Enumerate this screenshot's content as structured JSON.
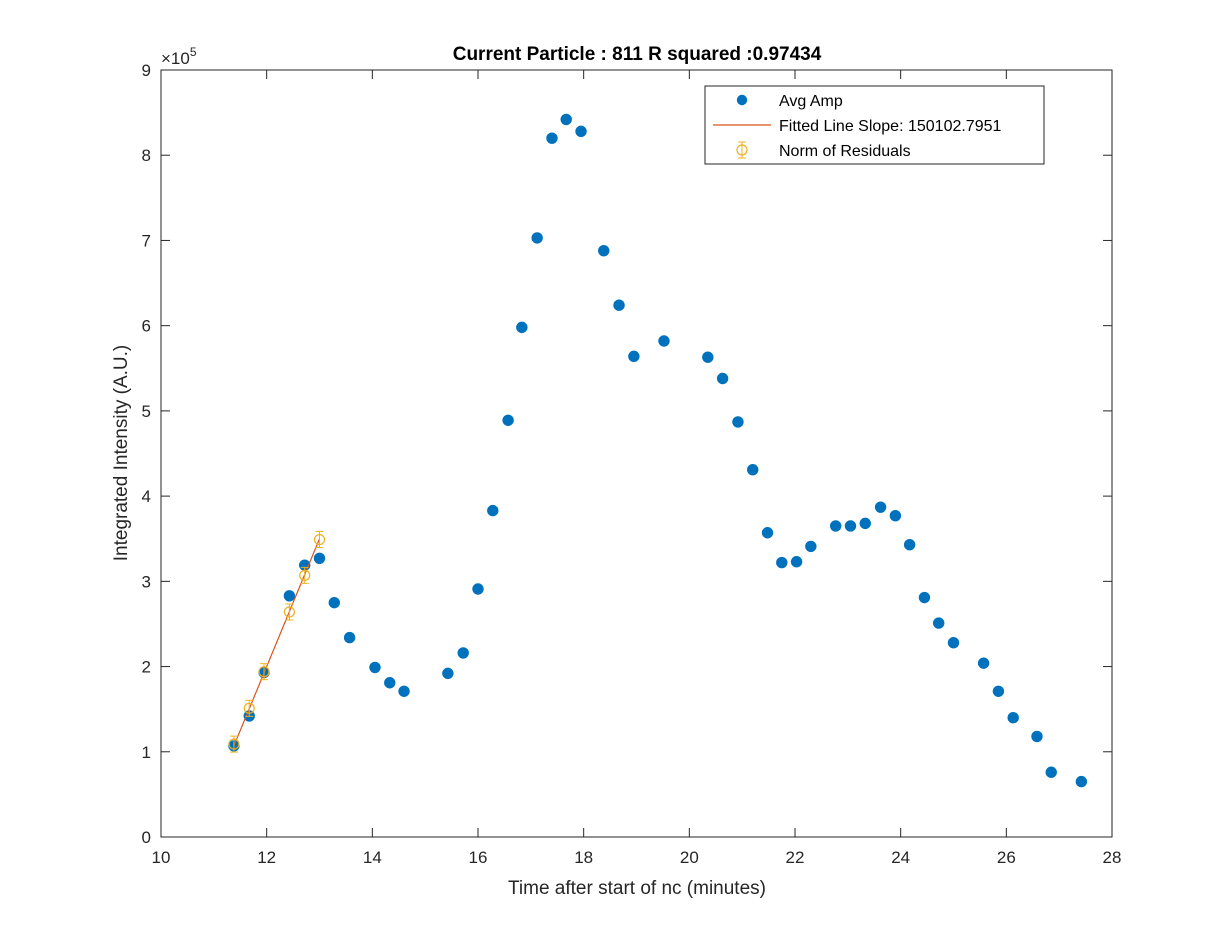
{
  "chart_data": {
    "type": "scatter",
    "title": "Current Particle : 811   R squared :0.97434",
    "xlabel": "Time after start of nc (minutes)",
    "ylabel": "Integrated Intensity (A.U.)",
    "xlim": [
      10,
      28
    ],
    "ylim": [
      0,
      900000
    ],
    "y_exponent_base": "×10",
    "y_exponent_power": "5",
    "xticks": [
      "10",
      "12",
      "14",
      "16",
      "18",
      "20",
      "22",
      "24",
      "26",
      "28"
    ],
    "yticks": [
      "0",
      "1",
      "2",
      "3",
      "4",
      "5",
      "6",
      "7",
      "8",
      "9"
    ],
    "grid": false,
    "legend_position": "top-right",
    "series": [
      {
        "name": "Avg Amp",
        "kind": "scatter-filled",
        "color": "#0072BD",
        "x": [
          11.38,
          11.67,
          11.95,
          12.43,
          12.72,
          13.0,
          13.28,
          13.57,
          14.05,
          14.33,
          14.6,
          15.43,
          15.72,
          16.0,
          16.28,
          16.57,
          16.83,
          17.12,
          17.4,
          17.67,
          17.95,
          18.38,
          18.67,
          18.95,
          19.52,
          20.35,
          20.63,
          20.92,
          21.2,
          21.48,
          21.75,
          22.03,
          22.3,
          22.77,
          23.05,
          23.33,
          23.62,
          23.9,
          24.17,
          24.45,
          24.72,
          25.0,
          25.57,
          25.85,
          26.13,
          26.58,
          26.85,
          27.42
        ],
        "y": [
          107000,
          142000,
          193000,
          283000,
          319000,
          327000,
          275000,
          234000,
          199000,
          181000,
          171000,
          192000,
          216000,
          291000,
          383000,
          489000,
          598000,
          703000,
          820000,
          842000,
          828000,
          688000,
          624000,
          564000,
          582000,
          563000,
          538000,
          487000,
          431000,
          357000,
          322000,
          323000,
          341000,
          365000,
          365000,
          368000,
          387000,
          377000,
          343000,
          281000,
          251000,
          228000,
          204000,
          171000,
          140000,
          118000,
          76000,
          65000
        ]
      },
      {
        "name": "Fitted Line Slope: 150102.7951",
        "kind": "line",
        "color": "#D95319",
        "x": [
          11.38,
          13.0
        ],
        "y": [
          107000,
          350000
        ]
      },
      {
        "name": "Norm of Residuals",
        "kind": "errorbar-open",
        "color": "#EDB120",
        "x": [
          11.38,
          11.67,
          11.95,
          12.43,
          12.72,
          13.0
        ],
        "y": [
          109000,
          151000,
          194000,
          264000,
          307000,
          349000
        ]
      }
    ]
  }
}
